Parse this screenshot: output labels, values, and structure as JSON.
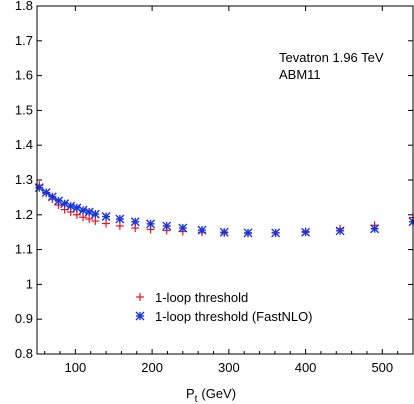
{
  "chart_data": {
    "type": "scatter",
    "annotations": [
      "Tevatron 1.96 TeV",
      "ABM11"
    ],
    "xlabel": {
      "main": "P",
      "sub": "t",
      "unit": "(GeV)"
    },
    "ylabel": "",
    "xlim": [
      50,
      540
    ],
    "ylim": [
      0.8,
      1.8
    ],
    "xticks": [
      100,
      200,
      300,
      400,
      500
    ],
    "yticks": [
      0.8,
      0.9,
      1,
      1.1,
      1.2,
      1.3,
      1.4,
      1.5,
      1.6,
      1.7,
      1.8
    ],
    "legend_position": "bottom-left",
    "series": [
      {
        "name": "1-loop threshold",
        "marker": "plus",
        "color": "#e8141c",
        "points": [
          [
            53,
            1.285
          ],
          [
            62,
            1.262
          ],
          [
            70,
            1.245
          ],
          [
            78,
            1.228
          ],
          [
            86,
            1.215
          ],
          [
            94,
            1.208
          ],
          [
            102,
            1.2
          ],
          [
            110,
            1.193
          ],
          [
            118,
            1.188
          ],
          [
            126,
            1.182
          ],
          [
            140,
            1.175
          ],
          [
            158,
            1.168
          ],
          [
            178,
            1.162
          ],
          [
            198,
            1.158
          ],
          [
            219,
            1.155
          ],
          [
            240,
            1.152
          ],
          [
            265,
            1.15
          ],
          [
            294,
            1.148
          ],
          [
            325,
            1.147
          ],
          [
            361,
            1.148
          ],
          [
            400,
            1.152
          ],
          [
            445,
            1.16
          ],
          [
            490,
            1.17
          ],
          [
            540,
            1.192
          ]
        ]
      },
      {
        "name": "1-loop threshold (FastNLO)",
        "marker": "star",
        "color": "#1a35d8",
        "points": [
          [
            53,
            1.278
          ],
          [
            62,
            1.264
          ],
          [
            70,
            1.252
          ],
          [
            78,
            1.24
          ],
          [
            86,
            1.232
          ],
          [
            94,
            1.225
          ],
          [
            102,
            1.22
          ],
          [
            110,
            1.213
          ],
          [
            118,
            1.208
          ],
          [
            126,
            1.202
          ],
          [
            140,
            1.195
          ],
          [
            158,
            1.188
          ],
          [
            178,
            1.18
          ],
          [
            198,
            1.174
          ],
          [
            219,
            1.168
          ],
          [
            240,
            1.162
          ],
          [
            265,
            1.156
          ],
          [
            294,
            1.15
          ],
          [
            325,
            1.148
          ],
          [
            361,
            1.148
          ],
          [
            400,
            1.15
          ],
          [
            445,
            1.154
          ],
          [
            490,
            1.16
          ],
          [
            540,
            1.18
          ]
        ]
      }
    ]
  }
}
